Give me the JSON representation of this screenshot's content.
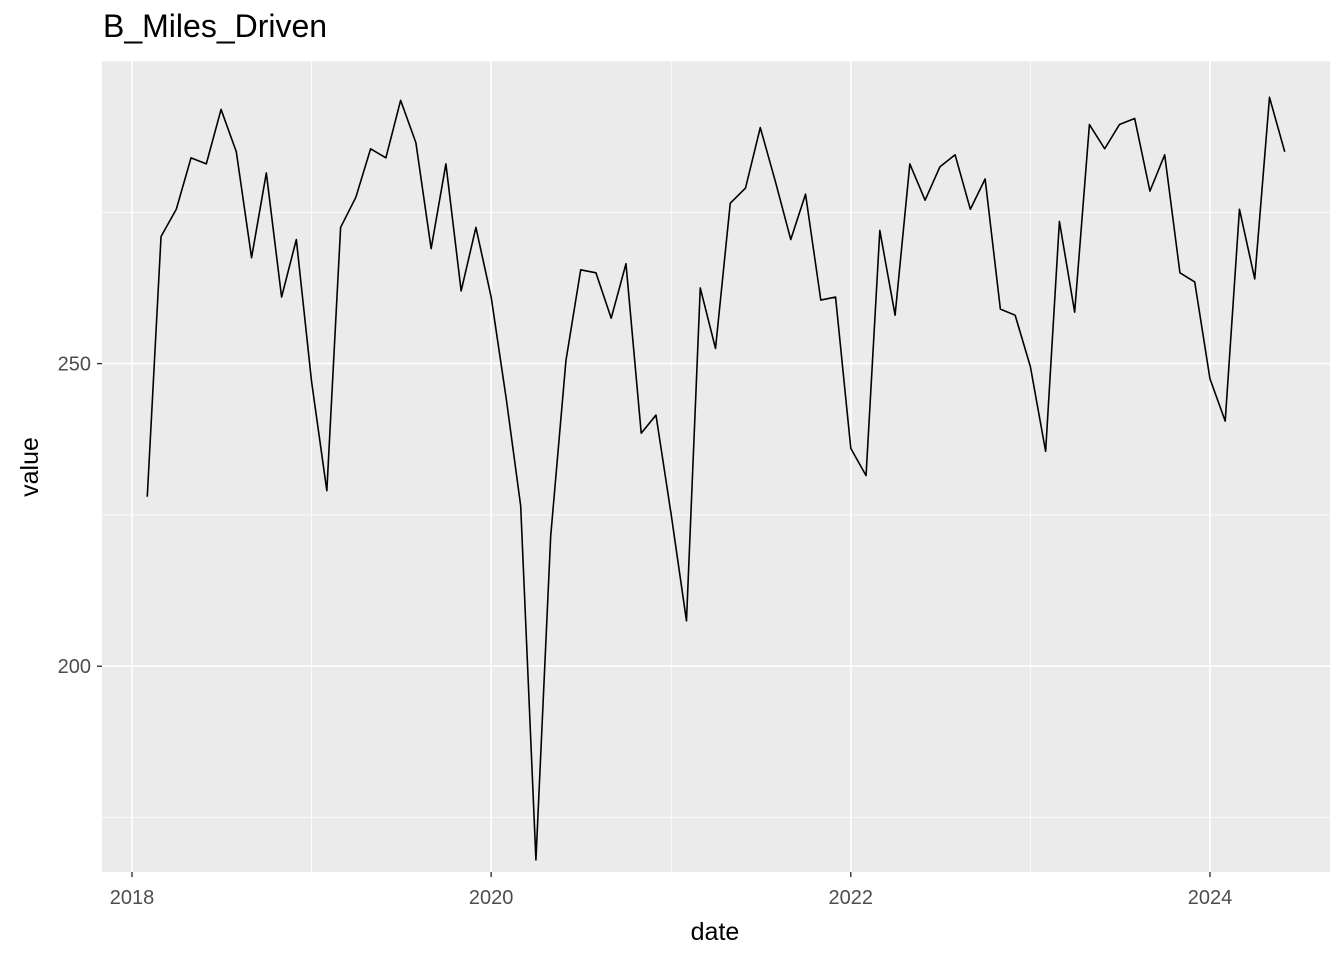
{
  "chart_data": {
    "type": "line",
    "title": "B_Miles_Driven",
    "xlabel": "date",
    "ylabel": "value",
    "x_axis_type": "date",
    "xlim": [
      "2017-11-01",
      "2024-09-01"
    ],
    "ylim": [
      166,
      300
    ],
    "x_ticks": [
      "2018",
      "2020",
      "2022",
      "2024"
    ],
    "y_ticks": [
      200,
      250
    ],
    "grid": true,
    "background": "#EBEBEB",
    "line_color": "#000000",
    "series": [
      {
        "x": [
          "2018-02-01",
          "2018-03-01",
          "2018-04-01",
          "2018-05-01",
          "2018-06-01",
          "2018-07-01",
          "2018-08-01",
          "2018-09-01",
          "2018-10-01",
          "2018-11-01",
          "2018-12-01",
          "2019-01-01",
          "2019-02-01",
          "2019-03-01",
          "2019-04-01",
          "2019-05-01",
          "2019-06-01",
          "2019-07-01",
          "2019-08-01",
          "2019-09-01",
          "2019-10-01",
          "2019-11-01",
          "2019-12-01",
          "2020-01-01",
          "2020-02-01",
          "2020-03-01",
          "2020-04-01",
          "2020-05-01",
          "2020-06-01",
          "2020-07-01",
          "2020-08-01",
          "2020-09-01",
          "2020-10-01",
          "2020-11-01",
          "2020-12-01",
          "2021-01-01",
          "2021-02-01",
          "2021-03-01",
          "2021-04-01",
          "2021-05-01",
          "2021-06-01",
          "2021-07-01",
          "2021-08-01",
          "2021-09-01",
          "2021-10-01",
          "2021-11-01",
          "2021-12-01",
          "2022-01-01",
          "2022-02-01",
          "2022-03-01",
          "2022-04-01",
          "2022-05-01",
          "2022-06-01",
          "2022-07-01",
          "2022-08-01",
          "2022-09-01",
          "2022-10-01",
          "2022-11-01",
          "2022-12-01",
          "2023-01-01",
          "2023-02-01",
          "2023-03-01",
          "2023-04-01",
          "2023-05-01",
          "2023-06-01",
          "2023-07-01",
          "2023-08-01",
          "2023-09-01",
          "2023-10-01",
          "2023-11-01",
          "2023-12-01",
          "2024-01-01",
          "2024-02-01",
          "2024-03-01",
          "2024-04-01",
          "2024-05-01",
          "2024-06-01"
        ],
        "values": [
          228,
          271,
          275.5,
          284,
          283,
          292,
          285,
          267.5,
          281.5,
          261,
          270.5,
          247,
          229,
          272.5,
          277.5,
          285.5,
          284,
          293.5,
          286.5,
          269,
          283,
          262,
          272.5,
          261,
          244,
          226.5,
          168,
          221.5,
          250.5,
          265.5,
          265,
          257.5,
          266.5,
          238.5,
          241.5,
          225,
          207.5,
          262.5,
          252.5,
          276.5,
          279,
          289,
          280,
          270.5,
          278,
          260.5,
          261,
          236,
          231.5,
          272,
          258,
          283,
          277,
          282.5,
          284.5,
          275.5,
          280.5,
          259,
          258,
          249.5,
          235.5,
          273.5,
          258.5,
          289.5,
          285.5,
          289.5,
          290.5,
          278.5,
          284.5,
          265,
          263.5,
          247.5,
          240.5,
          275.5,
          264,
          294,
          285
        ]
      }
    ]
  }
}
